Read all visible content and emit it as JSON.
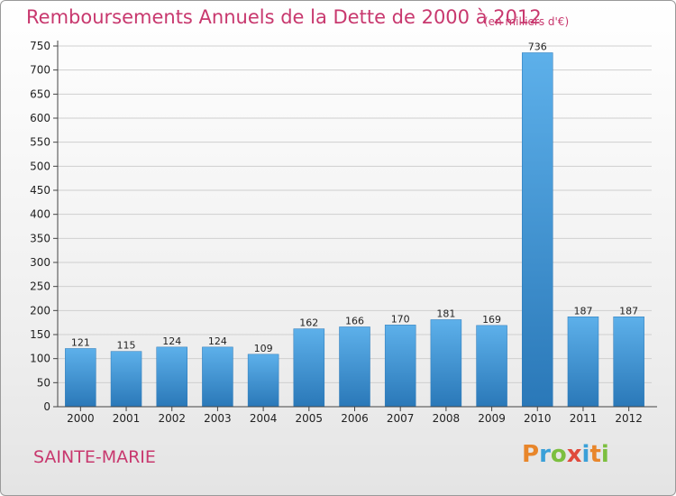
{
  "unit_note": "(en milliers d'€)",
  "town": "SAINTE-MARIE",
  "logo": {
    "text": "Proxiti",
    "letters": [
      {
        "ch": "P",
        "color": "#e8862b"
      },
      {
        "ch": "r",
        "color": "#3aa0d8"
      },
      {
        "ch": "o",
        "color": "#7cbf3f"
      },
      {
        "ch": "x",
        "color": "#e04a3c"
      },
      {
        "ch": "i",
        "color": "#3aa0d8"
      },
      {
        "ch": "t",
        "color": "#e8862b"
      },
      {
        "ch": "i",
        "color": "#7cbf3f"
      }
    ]
  },
  "colors": {
    "title": "#c8386e",
    "bar_top": "#5db0ea",
    "bar_bottom": "#2a78b8",
    "grid": "#cfcfcf",
    "axis": "#444444",
    "text": "#222222"
  },
  "chart_data": {
    "type": "bar",
    "title": "Remboursements Annuels de la Dette de 2000 à 2012",
    "xlabel": "",
    "ylabel": "",
    "categories": [
      "2000",
      "2001",
      "2002",
      "2003",
      "2004",
      "2005",
      "2006",
      "2007",
      "2008",
      "2009",
      "2010",
      "2011",
      "2012"
    ],
    "values": [
      121,
      115,
      124,
      124,
      109,
      162,
      166,
      170,
      181,
      169,
      736,
      187,
      187
    ],
    "data_labels": [
      "121",
      "115",
      "124",
      "124",
      "109",
      "162",
      "166",
      "170",
      "181",
      "169",
      "736",
      "187",
      "187"
    ],
    "yticks": [
      0,
      50,
      100,
      150,
      200,
      250,
      300,
      350,
      400,
      450,
      500,
      550,
      600,
      650,
      700,
      750
    ],
    "ylim": [
      0,
      750
    ],
    "grid": true,
    "legend": "none"
  }
}
